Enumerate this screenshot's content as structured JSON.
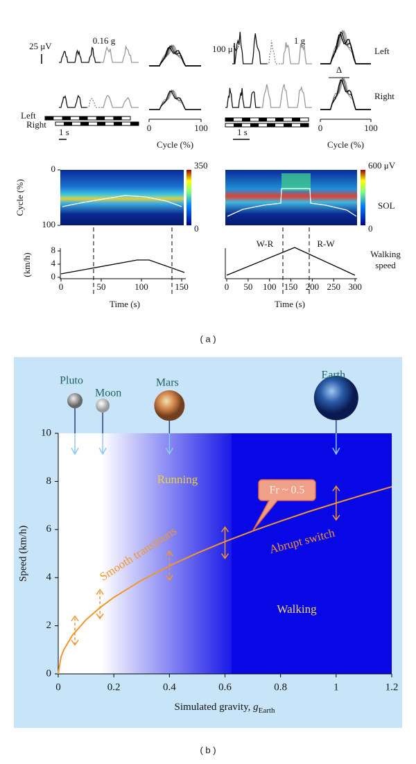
{
  "panel_a": {
    "label": "( a )",
    "left": {
      "condition": "0.16 g",
      "scale": "25 μV",
      "legs": [
        "Left",
        "Right"
      ],
      "time_scale": "1 s",
      "cycle_ticks": [
        0,
        100
      ],
      "cycle_label": "Cycle (%)"
    },
    "right": {
      "condition": "1 g",
      "scale": "100 μV",
      "legs": [
        "Left",
        "Right"
      ],
      "delta": "Δ",
      "time_scale": "1 s",
      "cycle_ticks": [
        0,
        100
      ],
      "cycle_label": "Cycle (%)"
    },
    "heatmap": {
      "y_label": "Cycle (%)",
      "y_ticks": [
        0,
        100
      ],
      "left_colorbar": [
        350,
        0
      ],
      "right_colorbar": [
        "600 μV",
        0
      ],
      "muscle": "SOL"
    },
    "speed": {
      "y_label": "(km/h)",
      "y_ticks": [
        8,
        4,
        0
      ],
      "left_x_ticks": [
        0,
        50,
        100,
        150
      ],
      "right_x_ticks": [
        0,
        50,
        100,
        150,
        200,
        250,
        300
      ],
      "x_label": "Time (s)",
      "transitions": [
        "W-R",
        "R-W"
      ],
      "legend": [
        "Walking",
        "speed"
      ]
    }
  },
  "panel_b": {
    "label": "( b )",
    "xlim": [
      0,
      1.2
    ],
    "xticks": [
      0,
      0.2,
      0.4,
      0.6,
      0.8,
      1,
      1.2
    ],
    "ylim": [
      0,
      10
    ],
    "yticks": [
      0,
      2,
      4,
      6,
      8,
      10
    ],
    "y_label": "Speed (km/h)",
    "x_label": [
      "Simulated gravity, ",
      "g",
      "Earth"
    ],
    "planets": [
      {
        "name": "Pluto",
        "gravity": 0.06
      },
      {
        "name": "Moon",
        "gravity": 0.16
      },
      {
        "name": "Mars",
        "gravity": 0.4
      },
      {
        "name": "Earth",
        "gravity": 1
      }
    ],
    "regions": [
      "Running",
      "Walking"
    ],
    "annotations": [
      "Smooth transitions",
      "Abrupt switch",
      "Fr ~ 0.5"
    ],
    "transition_curve": {
      "color": "#f0962e",
      "x": [
        0,
        0.01,
        0.02,
        0.05,
        0.1,
        0.15,
        0.2,
        0.3,
        0.4,
        0.5,
        0.6,
        0.7,
        0.8,
        0.9,
        1,
        1.1,
        1.2
      ],
      "y": [
        0,
        0.71,
        1,
        1.59,
        2.25,
        2.75,
        3.18,
        3.89,
        4.49,
        5.02,
        5.5,
        5.94,
        6.35,
        6.74,
        7.1,
        7.45,
        7.78
      ]
    }
  }
}
